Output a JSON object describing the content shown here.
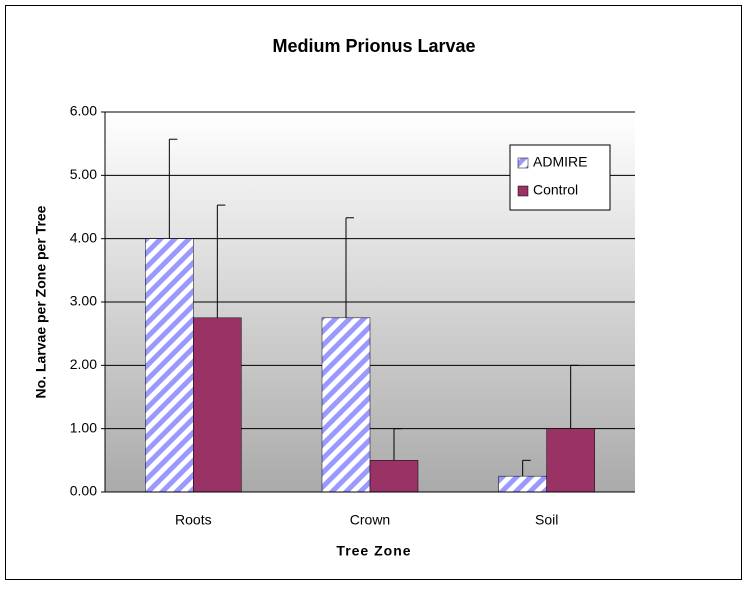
{
  "chart_data": {
    "type": "bar",
    "title": "Medium Prionus Larvae",
    "x_label": "Tree Zone",
    "y_label": "No. Larvae per Zone per Tree",
    "categories": [
      "Roots",
      "Crown",
      "Soil"
    ],
    "series": [
      {
        "name": "ADMIRE",
        "color": "#9999ff",
        "pattern": "diagonal-hatch",
        "values": [
          4.0,
          2.75,
          0.25
        ],
        "errors": [
          1.57,
          1.58,
          0.25
        ]
      },
      {
        "name": "Control",
        "color": "#993366",
        "values": [
          2.75,
          0.5,
          1.0
        ],
        "errors": [
          1.78,
          0.5,
          1.0
        ]
      }
    ],
    "ylim": [
      0,
      6
    ],
    "yticks": [
      {
        "value": 0,
        "label": "0.00"
      },
      {
        "value": 1,
        "label": "1.00"
      },
      {
        "value": 2,
        "label": "2.00"
      },
      {
        "value": 3,
        "label": "3.00"
      },
      {
        "value": 4,
        "label": "4.00"
      },
      {
        "value": 5,
        "label": "5.00"
      },
      {
        "value": 6,
        "label": "6.00"
      }
    ],
    "grid": true,
    "legend": "upper right"
  }
}
